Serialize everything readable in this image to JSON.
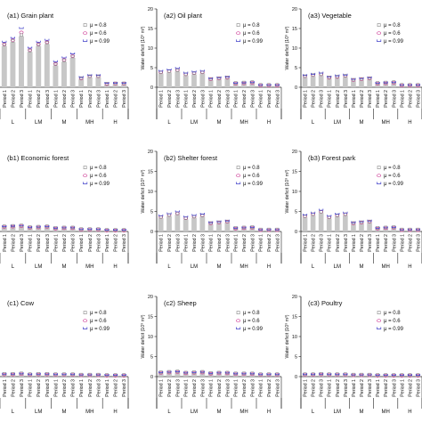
{
  "colors": {
    "bar": "#c7c7c7",
    "mu08": "#888888",
    "mu06": "#d0439a",
    "mu099": "#3c3cc8",
    "axis": "#222222"
  },
  "groups": [
    "L",
    "LM",
    "M",
    "MH",
    "H"
  ],
  "periods": [
    "Period 1",
    "Period 2",
    "Period 3"
  ],
  "chart_data": [
    {
      "type": "bar",
      "title": "(a1) Grain plant",
      "ylabel": "",
      "ylim": [
        0,
        20
      ],
      "yticks": [],
      "legend": "top-right",
      "series": [
        {
          "name": "μ = 0.8",
          "marker": "square",
          "values": [
            10.5,
            11.5,
            13.0,
            9.0,
            10.5,
            11.0,
            5.5,
            6.5,
            7.5,
            2.0,
            2.5,
            2.5,
            0.6,
            0.7,
            0.7
          ]
        },
        {
          "name": "μ = 0.6",
          "marker": "circle",
          "values": [
            11.0,
            12.0,
            14.0,
            9.5,
            11.0,
            11.5,
            6.0,
            7.0,
            8.0,
            2.2,
            2.8,
            2.8,
            0.8,
            0.9,
            0.9
          ]
        },
        {
          "name": "μ = 0.99",
          "marker": "bar",
          "values": [
            11.5,
            12.5,
            15.0,
            10.0,
            11.5,
            12.0,
            6.5,
            7.5,
            8.5,
            2.5,
            3.0,
            3.0,
            1.0,
            1.0,
            1.0
          ]
        }
      ]
    },
    {
      "type": "bar",
      "title": "(a2) Oil plant",
      "ylabel": "Water deficit (10⁹ m³)",
      "ylim": [
        0,
        20
      ],
      "yticks": [
        "0",
        "5",
        "10",
        "15",
        "20"
      ],
      "legend": "top-right",
      "series": [
        {
          "name": "μ = 0.8",
          "marker": "square",
          "values": [
            3.5,
            3.8,
            4.0,
            3.0,
            3.3,
            3.5,
            1.8,
            2.0,
            2.2,
            0.8,
            0.9,
            1.0,
            0.3,
            0.3,
            0.3
          ]
        },
        {
          "name": "μ = 0.6",
          "marker": "circle",
          "values": [
            3.8,
            4.1,
            4.4,
            3.3,
            3.6,
            3.8,
            2.0,
            2.2,
            2.4,
            0.9,
            1.0,
            1.1,
            0.4,
            0.4,
            0.4
          ]
        },
        {
          "name": "μ = 0.99",
          "marker": "bar",
          "values": [
            4.1,
            4.4,
            4.8,
            3.6,
            3.9,
            4.1,
            2.2,
            2.4,
            2.6,
            1.0,
            1.1,
            1.2,
            0.5,
            0.5,
            0.5
          ]
        }
      ]
    },
    {
      "type": "bar",
      "title": "(a3) Vegetable",
      "ylabel": "Water deficit (10⁹ m³)",
      "ylim": [
        0,
        20
      ],
      "yticks": [
        "0",
        "5",
        "10",
        "15",
        "20"
      ],
      "legend": "top-right",
      "series": [
        {
          "name": "μ = 0.8",
          "marker": "square",
          "values": [
            2.5,
            2.8,
            3.0,
            2.2,
            2.4,
            2.6,
            1.6,
            1.8,
            2.0,
            0.8,
            0.9,
            1.0,
            0.3,
            0.3,
            0.3
          ]
        },
        {
          "name": "μ = 0.6",
          "marker": "circle",
          "values": [
            2.8,
            3.1,
            3.3,
            2.4,
            2.6,
            2.9,
            1.8,
            2.0,
            2.2,
            0.9,
            1.0,
            1.1,
            0.4,
            0.4,
            0.4
          ]
        },
        {
          "name": "μ = 0.99",
          "marker": "bar",
          "values": [
            3.0,
            3.3,
            3.6,
            2.6,
            2.9,
            3.1,
            2.0,
            2.2,
            2.4,
            1.0,
            1.1,
            1.2,
            0.5,
            0.5,
            0.5
          ]
        }
      ]
    },
    {
      "type": "bar",
      "title": "(b1) Economic forest",
      "ylabel": "",
      "ylim": [
        0,
        20
      ],
      "yticks": [],
      "legend": "top-right",
      "series": [
        {
          "name": "μ = 0.8",
          "marker": "square",
          "values": [
            1.0,
            1.1,
            1.2,
            0.8,
            0.9,
            1.0,
            0.6,
            0.7,
            0.7,
            0.3,
            0.3,
            0.3,
            0.1,
            0.1,
            0.1
          ]
        },
        {
          "name": "μ = 0.6",
          "marker": "circle",
          "values": [
            1.1,
            1.2,
            1.3,
            0.9,
            1.0,
            1.1,
            0.7,
            0.8,
            0.8,
            0.4,
            0.4,
            0.4,
            0.2,
            0.2,
            0.2
          ]
        },
        {
          "name": "μ = 0.99",
          "marker": "bar",
          "values": [
            1.2,
            1.3,
            1.4,
            1.0,
            1.1,
            1.2,
            0.8,
            0.9,
            0.9,
            0.5,
            0.5,
            0.5,
            0.3,
            0.3,
            0.3
          ]
        }
      ]
    },
    {
      "type": "bar",
      "title": "(b2) Shelter forest",
      "ylabel": "Water deficit (10⁹ m³)",
      "ylim": [
        0,
        20
      ],
      "yticks": [
        "0",
        "5",
        "10",
        "15",
        "20"
      ],
      "legend": "top-right",
      "series": [
        {
          "name": "μ = 0.8",
          "marker": "square",
          "values": [
            3.3,
            3.8,
            4.2,
            3.0,
            3.4,
            3.7,
            1.8,
            2.0,
            2.2,
            0.6,
            0.7,
            0.8,
            0.2,
            0.2,
            0.2
          ]
        },
        {
          "name": "μ = 0.6",
          "marker": "circle",
          "values": [
            3.6,
            4.1,
            4.5,
            3.3,
            3.7,
            4.0,
            2.0,
            2.2,
            2.4,
            0.7,
            0.8,
            0.9,
            0.3,
            0.3,
            0.3
          ]
        },
        {
          "name": "μ = 0.99",
          "marker": "bar",
          "values": [
            3.9,
            4.4,
            4.9,
            3.6,
            4.0,
            4.3,
            2.2,
            2.4,
            2.6,
            0.8,
            0.9,
            1.0,
            0.4,
            0.4,
            0.4
          ]
        }
      ]
    },
    {
      "type": "bar",
      "title": "(b3) Forest park",
      "ylabel": "Water deficit (10⁹ m³)",
      "ylim": [
        0,
        20
      ],
      "yticks": [
        "0",
        "5",
        "10",
        "15",
        "20"
      ],
      "legend": "top-right",
      "series": [
        {
          "name": "μ = 0.8",
          "marker": "square",
          "values": [
            3.5,
            4.0,
            4.6,
            3.2,
            3.7,
            4.0,
            1.8,
            2.0,
            2.2,
            0.6,
            0.7,
            0.8,
            0.2,
            0.2,
            0.2
          ]
        },
        {
          "name": "μ = 0.6",
          "marker": "circle",
          "values": [
            3.8,
            4.3,
            4.9,
            3.5,
            4.0,
            4.3,
            2.0,
            2.2,
            2.4,
            0.7,
            0.8,
            0.9,
            0.3,
            0.3,
            0.3
          ]
        },
        {
          "name": "μ = 0.99",
          "marker": "bar",
          "values": [
            4.1,
            4.6,
            5.3,
            3.8,
            4.3,
            4.6,
            2.2,
            2.4,
            2.6,
            0.8,
            0.9,
            1.0,
            0.4,
            0.4,
            0.4
          ]
        }
      ]
    },
    {
      "type": "bar",
      "title": "(c1) Cow",
      "ylabel": "",
      "ylim": [
        0,
        20
      ],
      "yticks": [],
      "legend": "top-right",
      "series": [
        {
          "name": "μ = 0.8",
          "marker": "square",
          "values": [
            0.4,
            0.4,
            0.5,
            0.3,
            0.4,
            0.4,
            0.3,
            0.3,
            0.3,
            0.2,
            0.2,
            0.2,
            0.1,
            0.1,
            0.1
          ]
        },
        {
          "name": "μ = 0.6",
          "marker": "circle",
          "values": [
            0.5,
            0.5,
            0.6,
            0.4,
            0.5,
            0.5,
            0.4,
            0.4,
            0.4,
            0.3,
            0.3,
            0.3,
            0.2,
            0.2,
            0.2
          ]
        },
        {
          "name": "μ = 0.99",
          "marker": "bar",
          "values": [
            0.6,
            0.6,
            0.7,
            0.5,
            0.6,
            0.6,
            0.5,
            0.5,
            0.5,
            0.4,
            0.4,
            0.4,
            0.3,
            0.3,
            0.3
          ]
        }
      ]
    },
    {
      "type": "bar",
      "title": "(c2) Sheep",
      "ylabel": "Water deficit (10⁹ m³)",
      "ylim": [
        0,
        20
      ],
      "yticks": [
        "0",
        "5",
        "10",
        "15",
        "20"
      ],
      "legend": "top-right",
      "series": [
        {
          "name": "μ = 0.8",
          "marker": "square",
          "values": [
            0.8,
            0.9,
            1.0,
            0.7,
            0.8,
            0.9,
            0.6,
            0.7,
            0.7,
            0.5,
            0.5,
            0.5,
            0.3,
            0.3,
            0.3
          ]
        },
        {
          "name": "μ = 0.6",
          "marker": "circle",
          "values": [
            0.9,
            1.0,
            1.1,
            0.8,
            0.9,
            1.0,
            0.7,
            0.8,
            0.8,
            0.6,
            0.6,
            0.6,
            0.4,
            0.4,
            0.4
          ]
        },
        {
          "name": "μ = 0.99",
          "marker": "bar",
          "values": [
            1.0,
            1.1,
            1.2,
            0.9,
            1.0,
            1.1,
            0.8,
            0.9,
            0.9,
            0.7,
            0.7,
            0.7,
            0.5,
            0.5,
            0.5
          ]
        }
      ]
    },
    {
      "type": "bar",
      "title": "(c3) Poultry",
      "ylabel": "Water deficit (10⁹ m³)",
      "ylim": [
        0,
        20
      ],
      "yticks": [
        "0",
        "5",
        "10",
        "15",
        "20"
      ],
      "legend": "top-right",
      "series": [
        {
          "name": "μ = 0.8",
          "marker": "square",
          "values": [
            0.3,
            0.3,
            0.4,
            0.3,
            0.3,
            0.3,
            0.2,
            0.2,
            0.2,
            0.1,
            0.1,
            0.1,
            0.1,
            0.1,
            0.1
          ]
        },
        {
          "name": "μ = 0.6",
          "marker": "circle",
          "values": [
            0.4,
            0.4,
            0.5,
            0.4,
            0.4,
            0.4,
            0.3,
            0.3,
            0.3,
            0.2,
            0.2,
            0.2,
            0.2,
            0.2,
            0.2
          ]
        },
        {
          "name": "μ = 0.99",
          "marker": "bar",
          "values": [
            0.5,
            0.5,
            0.6,
            0.5,
            0.5,
            0.5,
            0.4,
            0.4,
            0.4,
            0.3,
            0.3,
            0.3,
            0.3,
            0.3,
            0.3
          ]
        }
      ]
    }
  ]
}
